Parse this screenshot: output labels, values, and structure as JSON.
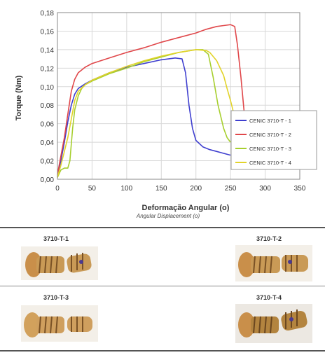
{
  "chart_data": {
    "type": "line",
    "ylabel": "Torque (Nm)",
    "xlabel": "Deformação Angular (o)",
    "xlabel_en": "Angular Displacement (o)",
    "xlim": [
      0,
      350
    ],
    "ylim": [
      0,
      0.18
    ],
    "x_ticks": [
      "0",
      "50",
      "100",
      "150",
      "200",
      "250",
      "300",
      "350"
    ],
    "y_ticks": [
      "0,00",
      "0,02",
      "0,04",
      "0,06",
      "0,08",
      "0,10",
      "0,12",
      "0,14",
      "0,16",
      "0,18"
    ],
    "grid": true,
    "legend_position": "right",
    "series": [
      {
        "name": "CENIC 3710-T - 1",
        "color": "#3f3fcf",
        "x": [
          0,
          5,
          10,
          15,
          20,
          25,
          30,
          40,
          50,
          75,
          100,
          125,
          150,
          170,
          180,
          185,
          190,
          195,
          200,
          210,
          220,
          230,
          240,
          250
        ],
        "y": [
          0.003,
          0.02,
          0.04,
          0.062,
          0.08,
          0.092,
          0.098,
          0.103,
          0.107,
          0.115,
          0.121,
          0.125,
          0.129,
          0.131,
          0.13,
          0.115,
          0.08,
          0.055,
          0.042,
          0.035,
          0.032,
          0.03,
          0.028,
          0.026
        ]
      },
      {
        "name": "CENIC 3710-T - 2",
        "color": "#e0474a",
        "x": [
          0,
          5,
          10,
          15,
          20,
          25,
          30,
          40,
          50,
          75,
          100,
          125,
          150,
          175,
          200,
          215,
          230,
          240,
          250,
          256,
          260,
          265,
          270,
          273
        ],
        "y": [
          0.005,
          0.025,
          0.045,
          0.07,
          0.095,
          0.108,
          0.115,
          0.121,
          0.125,
          0.131,
          0.137,
          0.142,
          0.148,
          0.153,
          0.158,
          0.162,
          0.165,
          0.166,
          0.167,
          0.165,
          0.145,
          0.11,
          0.07,
          0.04
        ]
      },
      {
        "name": "CENIC 3710-T - 3",
        "color": "#a7cf2f",
        "x": [
          0,
          5,
          10,
          15,
          18,
          22,
          25,
          30,
          35,
          40,
          50,
          75,
          100,
          125,
          150,
          175,
          200,
          210,
          218,
          225,
          232,
          240,
          245,
          250
        ],
        "y": [
          0.002,
          0.01,
          0.012,
          0.012,
          0.02,
          0.055,
          0.075,
          0.09,
          0.098,
          0.102,
          0.106,
          0.114,
          0.12,
          0.127,
          0.132,
          0.137,
          0.14,
          0.14,
          0.135,
          0.11,
          0.08,
          0.055,
          0.045,
          0.04
        ]
      },
      {
        "name": "CENIC 3710-T - 4",
        "color": "#e2d32a",
        "x": [
          0,
          5,
          10,
          15,
          20,
          25,
          30,
          40,
          50,
          75,
          100,
          125,
          150,
          175,
          200,
          215,
          220,
          230,
          240,
          245,
          250,
          255
        ],
        "y": [
          0.002,
          0.015,
          0.03,
          0.045,
          0.065,
          0.085,
          0.095,
          0.102,
          0.107,
          0.115,
          0.122,
          0.128,
          0.133,
          0.137,
          0.14,
          0.139,
          0.137,
          0.128,
          0.112,
          0.098,
          0.085,
          0.07
        ]
      }
    ]
  },
  "specimens": [
    {
      "label": "3710-T-1"
    },
    {
      "label": "3710-T-2"
    },
    {
      "label": "3710-T-3"
    },
    {
      "label": "3710-T-4"
    }
  ]
}
